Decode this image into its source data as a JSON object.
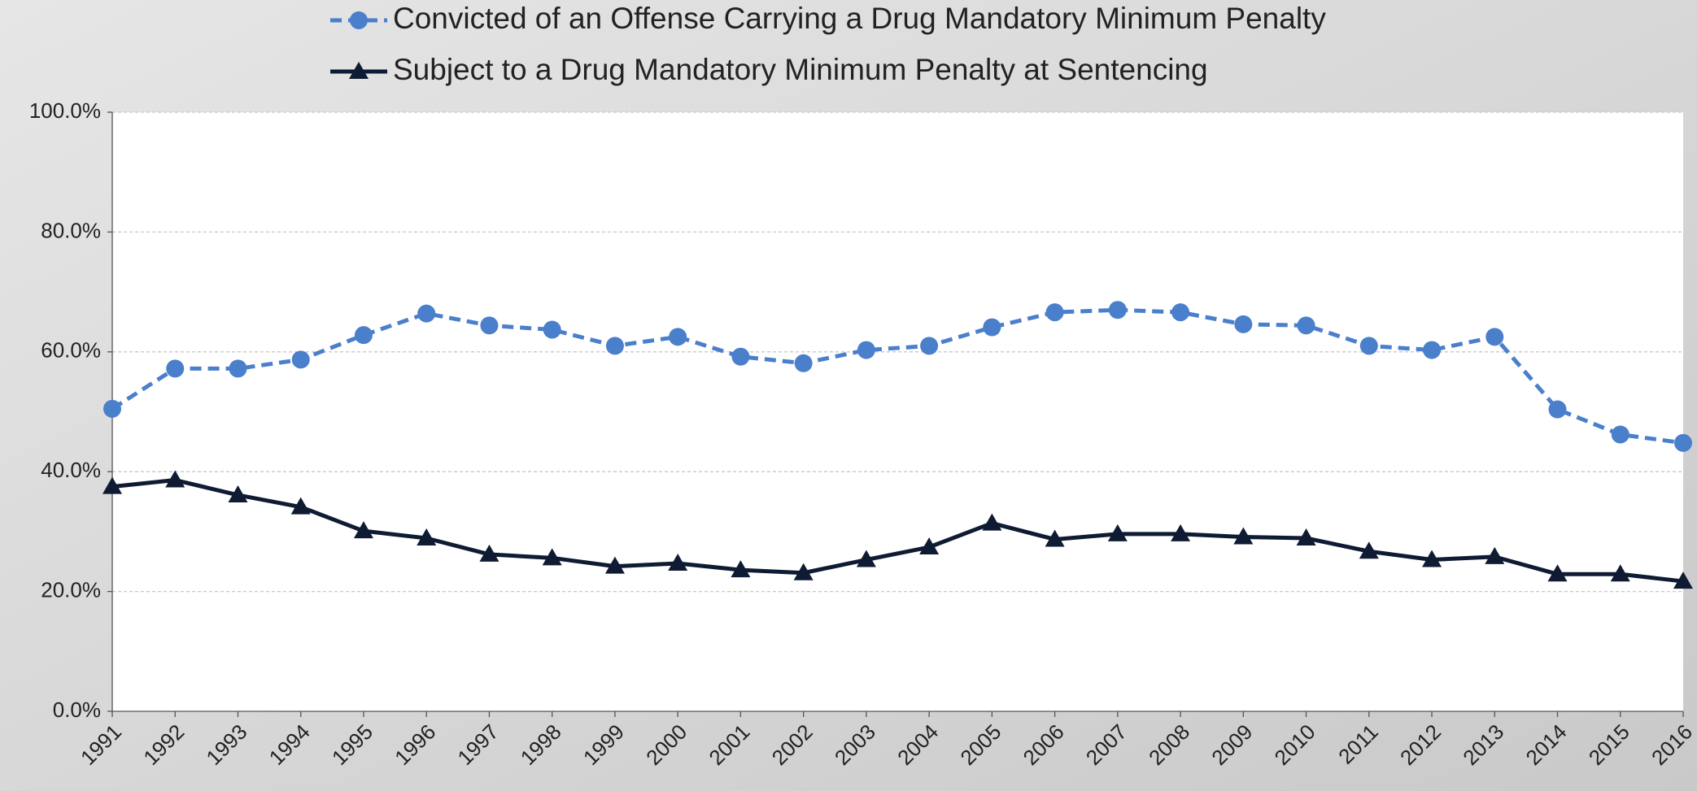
{
  "chart_data": {
    "type": "line",
    "categories": [
      "1991",
      "1992",
      "1993",
      "1994",
      "1995",
      "1996",
      "1997",
      "1998",
      "1999",
      "2000",
      "2001",
      "2002",
      "2003",
      "2004",
      "2005",
      "2006",
      "2007",
      "2008",
      "2009",
      "2010",
      "2011",
      "2012",
      "2013",
      "2014",
      "2015",
      "2016"
    ],
    "series": [
      {
        "name": "Convicted of an Offense Carrying a Drug Mandatory Minimum Penalty",
        "color": "#4a7fcb",
        "marker": "circle",
        "line_style": "dashed",
        "values": [
          50.5,
          57.2,
          57.2,
          58.7,
          62.8,
          66.4,
          64.4,
          63.7,
          61.0,
          62.5,
          59.2,
          58.1,
          60.3,
          61.0,
          64.1,
          66.6,
          67.0,
          66.6,
          64.6,
          64.4,
          61.0,
          60.3,
          62.5,
          50.4,
          46.2,
          44.8
        ]
      },
      {
        "name": "Subject to a Drug Mandatory Minimum Penalty at Sentencing",
        "color": "#0f1b33",
        "marker": "triangle",
        "line_style": "solid",
        "values": [
          37.5,
          38.6,
          36.1,
          34.1,
          30.1,
          28.9,
          26.2,
          25.6,
          24.2,
          24.7,
          23.6,
          23.1,
          25.3,
          27.4,
          31.4,
          28.7,
          29.6,
          29.6,
          29.1,
          28.9,
          26.7,
          25.3,
          25.8,
          22.9,
          22.9,
          21.7
        ]
      }
    ],
    "ylim": [
      0,
      100
    ],
    "yticks": [
      {
        "value": 0,
        "label": "0.0%"
      },
      {
        "value": 20,
        "label": "20.0%"
      },
      {
        "value": 40,
        "label": "40.0%"
      },
      {
        "value": 60,
        "label": "60.0%"
      },
      {
        "value": 80,
        "label": "80.0%"
      },
      {
        "value": 100,
        "label": "100.0%"
      }
    ],
    "grid": true,
    "legend": "top"
  }
}
